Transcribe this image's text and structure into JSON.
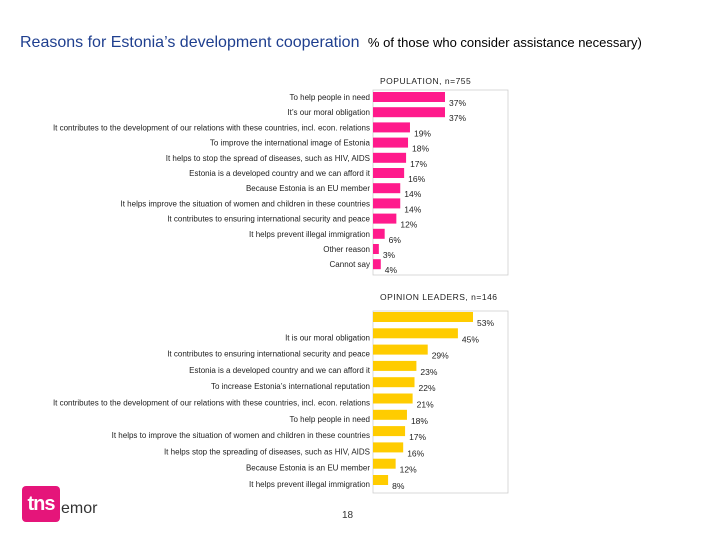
{
  "header": {
    "title": "Reasons for Estonia’s development cooperation",
    "subtitle": "% of those who consider assistance necessary)"
  },
  "logo": {
    "mark": "tns",
    "text": "emor"
  },
  "page_number": "18",
  "colors": {
    "population": "#ff1a8c",
    "leaders": "#ffcc00",
    "title": "#1f3f8f"
  },
  "chart_data": [
    {
      "type": "bar",
      "orientation": "horizontal",
      "title": "POPULATION, n=755",
      "xlim": [
        0,
        37
      ],
      "categories": [
        "To help people in need",
        "It’s our moral obligation",
        "It contributes to the development of our relations with these countries, incl. econ. relations",
        "To improve the international image of Estonia",
        "It helps to stop the spread of diseases, such as HIV, AIDS",
        "Estonia is a developed country and we can afford it",
        "Because Estonia is an EU member",
        "It helps improve the situation of women and children in these countries",
        "It contributes to ensuring international security and peace",
        "It helps prevent illegal immigration",
        "Other reason",
        "Cannot say"
      ],
      "values": [
        37,
        37,
        19,
        18,
        17,
        16,
        14,
        14,
        12,
        6,
        3,
        4
      ],
      "labels": [
        "37%",
        "37%",
        "19%",
        "18%",
        "17%",
        "16%",
        "14%",
        "14%",
        "12%",
        "6%",
        "3%",
        "4%"
      ]
    },
    {
      "type": "bar",
      "orientation": "horizontal",
      "title": "OPINION LEADERS, n=146",
      "xlim": [
        0,
        53
      ],
      "categories": [
        "",
        "It is our moral obligation",
        "It contributes to ensuring international security and peace",
        "Estonia is a developed country and we can afford it",
        "To increase Estonia’s international reputation",
        "It contributes to the development of our relations with these countries, incl. econ. relations",
        "To help people in need",
        "It helps to improve the situation of women and children in these countries",
        "It helps stop the spreading of diseases, such as HIV, AIDS",
        "Because Estonia is an EU member",
        "It helps prevent illegal immigration"
      ],
      "values": [
        53,
        45,
        29,
        23,
        22,
        21,
        18,
        17,
        16,
        12,
        8
      ],
      "labels": [
        "53%",
        "45%",
        "29%",
        "23%",
        "22%",
        "21%",
        "18%",
        "17%",
        "16%",
        "12%",
        "8%"
      ]
    }
  ]
}
